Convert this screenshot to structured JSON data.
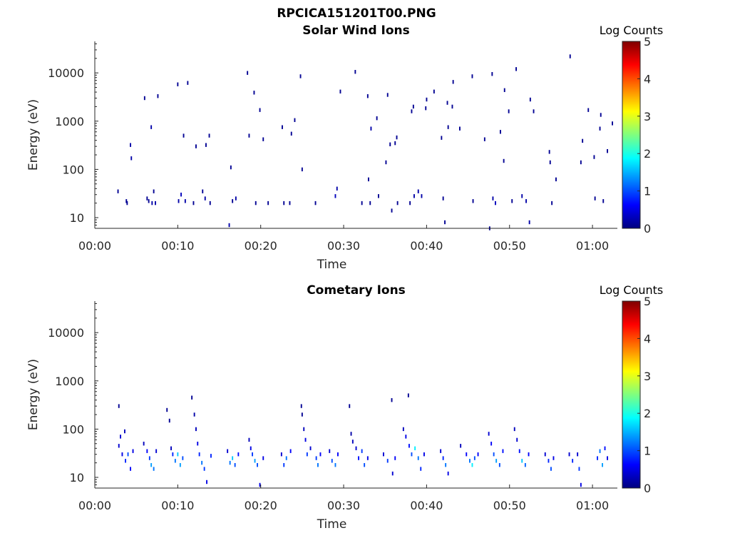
{
  "figure_title": "RPCICA151201T00.PNG",
  "colors": {
    "colormap": [
      "#00007f",
      "#0000ff",
      "#007fff",
      "#00ffff",
      "#7fff7f",
      "#ffff00",
      "#ff7f00",
      "#ff0000",
      "#7f0000"
    ],
    "axes": "#262626"
  },
  "chart_data": [
    {
      "type": "heatmap",
      "title": "Solar Wind Ions",
      "xlabel": "Time",
      "ylabel": "Energy (eV)",
      "x_unit": "minutes",
      "xlim": [
        0,
        63
      ],
      "xticks": [
        0,
        10,
        20,
        30,
        40,
        50,
        60
      ],
      "xtick_labels": [
        "00:00",
        "00:10",
        "00:20",
        "00:30",
        "00:40",
        "00:50",
        "01:00"
      ],
      "yscale": "log",
      "ylim": [
        6,
        45000
      ],
      "yticks": [
        10,
        100,
        1000,
        10000
      ],
      "ytick_labels": [
        "10",
        "100",
        "1000",
        "10000"
      ],
      "colorbar": {
        "label": "Log Counts",
        "range": [
          0,
          5
        ],
        "ticks": [
          "0",
          "1",
          "2",
          "3",
          "4",
          "5"
        ]
      },
      "cells": [
        [
          2.8,
          35,
          0.1
        ],
        [
          3.8,
          22,
          0.1
        ],
        [
          3.9,
          20,
          0.1
        ],
        [
          4.3,
          320,
          0.2
        ],
        [
          4.4,
          170,
          0.2
        ],
        [
          6.0,
          3000,
          0.1
        ],
        [
          6.3,
          25,
          0.1
        ],
        [
          6.5,
          22,
          0.1
        ],
        [
          6.8,
          750,
          0.2
        ],
        [
          6.9,
          20,
          0.2
        ],
        [
          7.1,
          35,
          0.1
        ],
        [
          7.3,
          20,
          0.2
        ],
        [
          7.6,
          3300,
          0.1
        ],
        [
          10.0,
          5800,
          0.1
        ],
        [
          10.1,
          22,
          0.2
        ],
        [
          10.4,
          30,
          0.3
        ],
        [
          10.7,
          500,
          0.1
        ],
        [
          10.9,
          22,
          0.2
        ],
        [
          11.2,
          6200,
          0.1
        ],
        [
          11.9,
          20,
          0.1
        ],
        [
          12.2,
          300,
          0.1
        ],
        [
          13.0,
          35,
          0.1
        ],
        [
          13.3,
          25,
          0.2
        ],
        [
          13.4,
          320,
          0.1
        ],
        [
          13.8,
          500,
          0.1
        ],
        [
          13.9,
          20,
          0.1
        ],
        [
          16.2,
          7,
          0.2
        ],
        [
          16.4,
          110,
          0.1
        ],
        [
          16.6,
          22,
          0.1
        ],
        [
          17.0,
          25,
          0.2
        ],
        [
          18.4,
          10000,
          0.1
        ],
        [
          18.6,
          500,
          0.1
        ],
        [
          19.2,
          3900,
          0.1
        ],
        [
          19.4,
          20,
          0.1
        ],
        [
          19.9,
          1700,
          0.1
        ],
        [
          20.3,
          420,
          0.1
        ],
        [
          20.9,
          20,
          0.1
        ],
        [
          22.6,
          750,
          0.1
        ],
        [
          22.8,
          20,
          0.1
        ],
        [
          23.5,
          20,
          0.1
        ],
        [
          23.7,
          550,
          0.1
        ],
        [
          24.1,
          1050,
          0.1
        ],
        [
          24.8,
          8500,
          0.1
        ],
        [
          25.0,
          100,
          0.1
        ],
        [
          26.6,
          20,
          0.1
        ],
        [
          29.0,
          28,
          0.3
        ],
        [
          29.2,
          40,
          0.2
        ],
        [
          29.6,
          4100,
          0.1
        ],
        [
          31.4,
          10500,
          0.1
        ],
        [
          32.2,
          20,
          0.1
        ],
        [
          32.9,
          3300,
          0.1
        ],
        [
          33.0,
          62,
          0.1
        ],
        [
          33.2,
          20,
          0.1
        ],
        [
          33.3,
          700,
          0.2
        ],
        [
          34.0,
          1150,
          0.1
        ],
        [
          34.2,
          28,
          0.1
        ],
        [
          35.1,
          140,
          0.1
        ],
        [
          35.3,
          3500,
          0.1
        ],
        [
          35.6,
          330,
          0.1
        ],
        [
          35.8,
          14,
          0.1
        ],
        [
          36.2,
          350,
          0.1
        ],
        [
          36.4,
          460,
          0.1
        ],
        [
          36.5,
          20,
          0.1
        ],
        [
          38.0,
          20,
          0.1
        ],
        [
          38.2,
          1600,
          0.1
        ],
        [
          38.4,
          2000,
          0.1
        ],
        [
          38.5,
          28,
          0.2
        ],
        [
          39.0,
          35,
          0.2
        ],
        [
          39.4,
          28,
          0.2
        ],
        [
          39.9,
          1850,
          0.1
        ],
        [
          40.0,
          2800,
          0.1
        ],
        [
          40.9,
          4100,
          0.1
        ],
        [
          41.8,
          450,
          0.1
        ],
        [
          42.0,
          25,
          0.1
        ],
        [
          42.2,
          8,
          0.1
        ],
        [
          42.5,
          2400,
          0.1
        ],
        [
          42.6,
          750,
          0.1
        ],
        [
          43.1,
          2000,
          0.1
        ],
        [
          43.2,
          6500,
          0.1
        ],
        [
          44.0,
          700,
          0.1
        ],
        [
          45.5,
          8500,
          0.1
        ],
        [
          45.6,
          22,
          0.1
        ],
        [
          47.0,
          420,
          0.1
        ],
        [
          47.6,
          6,
          0.1
        ],
        [
          47.9,
          9500,
          0.1
        ],
        [
          48.0,
          25,
          0.2
        ],
        [
          48.3,
          20,
          0.3
        ],
        [
          48.9,
          600,
          0.1
        ],
        [
          49.3,
          150,
          0.1
        ],
        [
          49.4,
          4400,
          0.1
        ],
        [
          49.9,
          1600,
          0.1
        ],
        [
          50.3,
          22,
          0.1
        ],
        [
          50.8,
          12000,
          0.1
        ],
        [
          51.5,
          28,
          0.2
        ],
        [
          52.0,
          22,
          0.2
        ],
        [
          52.4,
          8,
          0.2
        ],
        [
          52.5,
          2800,
          0.1
        ],
        [
          52.9,
          1600,
          0.1
        ],
        [
          54.8,
          230,
          0.1
        ],
        [
          54.9,
          140,
          0.1
        ],
        [
          55.1,
          20,
          0.1
        ],
        [
          55.6,
          62,
          0.1
        ],
        [
          57.3,
          22000,
          0.1
        ],
        [
          58.6,
          140,
          0.1
        ],
        [
          58.8,
          390,
          0.1
        ],
        [
          59.5,
          1700,
          0.1
        ],
        [
          60.2,
          180,
          0.1
        ],
        [
          60.3,
          25,
          0.1
        ],
        [
          60.9,
          700,
          0.1
        ],
        [
          61.0,
          1350,
          0.1
        ],
        [
          61.3,
          22,
          0.1
        ],
        [
          61.8,
          240,
          0.1
        ],
        [
          62.4,
          900,
          0.1
        ]
      ]
    },
    {
      "type": "heatmap",
      "title": "Cometary Ions",
      "xlabel": "Time",
      "ylabel": "Energy (eV)",
      "x_unit": "minutes",
      "xlim": [
        0,
        63
      ],
      "xticks": [
        0,
        10,
        20,
        30,
        40,
        50,
        60
      ],
      "xtick_labels": [
        "00:00",
        "00:10",
        "00:20",
        "00:30",
        "00:40",
        "00:50",
        "01:00"
      ],
      "yscale": "log",
      "ylim": [
        6,
        45000
      ],
      "yticks": [
        10,
        100,
        1000,
        10000
      ],
      "ytick_labels": [
        "10",
        "100",
        "1000",
        "10000"
      ],
      "colorbar": {
        "label": "Log Counts",
        "range": [
          0,
          5
        ],
        "ticks": [
          "0",
          "1",
          "2",
          "3",
          "4",
          "5"
        ]
      },
      "cells": [
        [
          2.9,
          300,
          0.1
        ],
        [
          2.9,
          45,
          0.4
        ],
        [
          3.1,
          70,
          0.4
        ],
        [
          3.3,
          30,
          0.5
        ],
        [
          3.6,
          90,
          0.3
        ],
        [
          3.7,
          22,
          0.8
        ],
        [
          4.0,
          30,
          1.0
        ],
        [
          4.3,
          15,
          0.6
        ],
        [
          4.6,
          35,
          0.5
        ],
        [
          5.9,
          50,
          0.3
        ],
        [
          6.3,
          35,
          0.6
        ],
        [
          6.6,
          25,
          0.9
        ],
        [
          6.8,
          18,
          1.4
        ],
        [
          7.1,
          15,
          1.2
        ],
        [
          7.4,
          35,
          0.4
        ],
        [
          8.7,
          250,
          0.1
        ],
        [
          9.0,
          150,
          0.1
        ],
        [
          9.2,
          40,
          0.3
        ],
        [
          9.4,
          30,
          0.8
        ],
        [
          9.7,
          22,
          1.2
        ],
        [
          10.0,
          30,
          1.6
        ],
        [
          10.3,
          18,
          1.4
        ],
        [
          10.6,
          25,
          1.0
        ],
        [
          11.7,
          450,
          0.1
        ],
        [
          12.0,
          200,
          0.2
        ],
        [
          12.2,
          100,
          0.3
        ],
        [
          12.4,
          50,
          0.5
        ],
        [
          12.6,
          30,
          0.8
        ],
        [
          12.9,
          20,
          1.2
        ],
        [
          13.2,
          15,
          0.9
        ],
        [
          13.5,
          8,
          0.5
        ],
        [
          14.0,
          28,
          0.8
        ],
        [
          16.0,
          35,
          0.4
        ],
        [
          16.3,
          20,
          1.2
        ],
        [
          16.6,
          25,
          1.6
        ],
        [
          16.9,
          18,
          1.0
        ],
        [
          17.3,
          30,
          0.7
        ],
        [
          18.6,
          60,
          0.3
        ],
        [
          18.8,
          40,
          0.5
        ],
        [
          19.0,
          30,
          0.9
        ],
        [
          19.3,
          22,
          1.4
        ],
        [
          19.6,
          18,
          1.0
        ],
        [
          19.9,
          7,
          0.5
        ],
        [
          20.3,
          25,
          0.5
        ],
        [
          22.5,
          30,
          0.4
        ],
        [
          22.8,
          18,
          0.9
        ],
        [
          23.1,
          25,
          1.2
        ],
        [
          23.6,
          35,
          0.6
        ],
        [
          24.9,
          300,
          0.1
        ],
        [
          25.0,
          200,
          0.1
        ],
        [
          25.2,
          100,
          0.3
        ],
        [
          25.4,
          60,
          0.5
        ],
        [
          25.6,
          30,
          0.9
        ],
        [
          26.0,
          40,
          0.4
        ],
        [
          26.7,
          25,
          0.9
        ],
        [
          26.9,
          18,
          1.2
        ],
        [
          27.2,
          30,
          0.6
        ],
        [
          28.3,
          35,
          0.4
        ],
        [
          28.6,
          22,
          1.0
        ],
        [
          29.0,
          18,
          1.2
        ],
        [
          29.3,
          30,
          0.6
        ],
        [
          30.7,
          300,
          0.1
        ],
        [
          30.9,
          80,
          0.2
        ],
        [
          31.1,
          55,
          0.3
        ],
        [
          31.5,
          40,
          0.4
        ],
        [
          31.8,
          25,
          0.7
        ],
        [
          32.2,
          35,
          0.9
        ],
        [
          32.5,
          18,
          1.0
        ],
        [
          32.9,
          25,
          0.5
        ],
        [
          34.8,
          30,
          0.4
        ],
        [
          35.3,
          22,
          0.9
        ],
        [
          35.8,
          400,
          0.1
        ],
        [
          35.9,
          12,
          0.4
        ],
        [
          36.2,
          25,
          0.6
        ],
        [
          37.2,
          100,
          0.3
        ],
        [
          37.5,
          70,
          0.5
        ],
        [
          37.8,
          500,
          0.1
        ],
        [
          37.9,
          45,
          0.7
        ],
        [
          38.2,
          30,
          1.0
        ],
        [
          38.6,
          40,
          1.8
        ],
        [
          39.0,
          25,
          1.2
        ],
        [
          39.3,
          15,
          0.8
        ],
        [
          39.7,
          30,
          0.5
        ],
        [
          41.7,
          35,
          0.4
        ],
        [
          42.0,
          25,
          0.8
        ],
        [
          42.3,
          18,
          1.2
        ],
        [
          42.6,
          12,
          0.5
        ],
        [
          44.1,
          45,
          0.3
        ],
        [
          44.8,
          30,
          0.6
        ],
        [
          45.2,
          22,
          1.2
        ],
        [
          45.5,
          18,
          1.8
        ],
        [
          45.8,
          25,
          1.0
        ],
        [
          46.2,
          30,
          0.6
        ],
        [
          47.5,
          80,
          0.4
        ],
        [
          47.8,
          50,
          0.6
        ],
        [
          48.1,
          30,
          1.0
        ],
        [
          48.4,
          22,
          1.4
        ],
        [
          48.8,
          18,
          1.0
        ],
        [
          49.2,
          35,
          0.7
        ],
        [
          50.6,
          100,
          0.3
        ],
        [
          50.9,
          60,
          0.4
        ],
        [
          51.2,
          35,
          0.7
        ],
        [
          51.5,
          22,
          1.6
        ],
        [
          51.9,
          18,
          1.1
        ],
        [
          52.3,
          30,
          0.6
        ],
        [
          54.3,
          30,
          0.4
        ],
        [
          54.7,
          22,
          0.8
        ],
        [
          55.0,
          15,
          1.0
        ],
        [
          55.3,
          25,
          0.5
        ],
        [
          57.2,
          30,
          0.4
        ],
        [
          57.6,
          22,
          0.8
        ],
        [
          58.2,
          30,
          0.4
        ],
        [
          58.4,
          15,
          0.9
        ],
        [
          58.6,
          7,
          0.5
        ],
        [
          60.6,
          25,
          0.8
        ],
        [
          60.9,
          35,
          1.2
        ],
        [
          61.2,
          18,
          1.4
        ],
        [
          61.5,
          40,
          0.7
        ],
        [
          61.8,
          25,
          0.5
        ]
      ]
    }
  ]
}
